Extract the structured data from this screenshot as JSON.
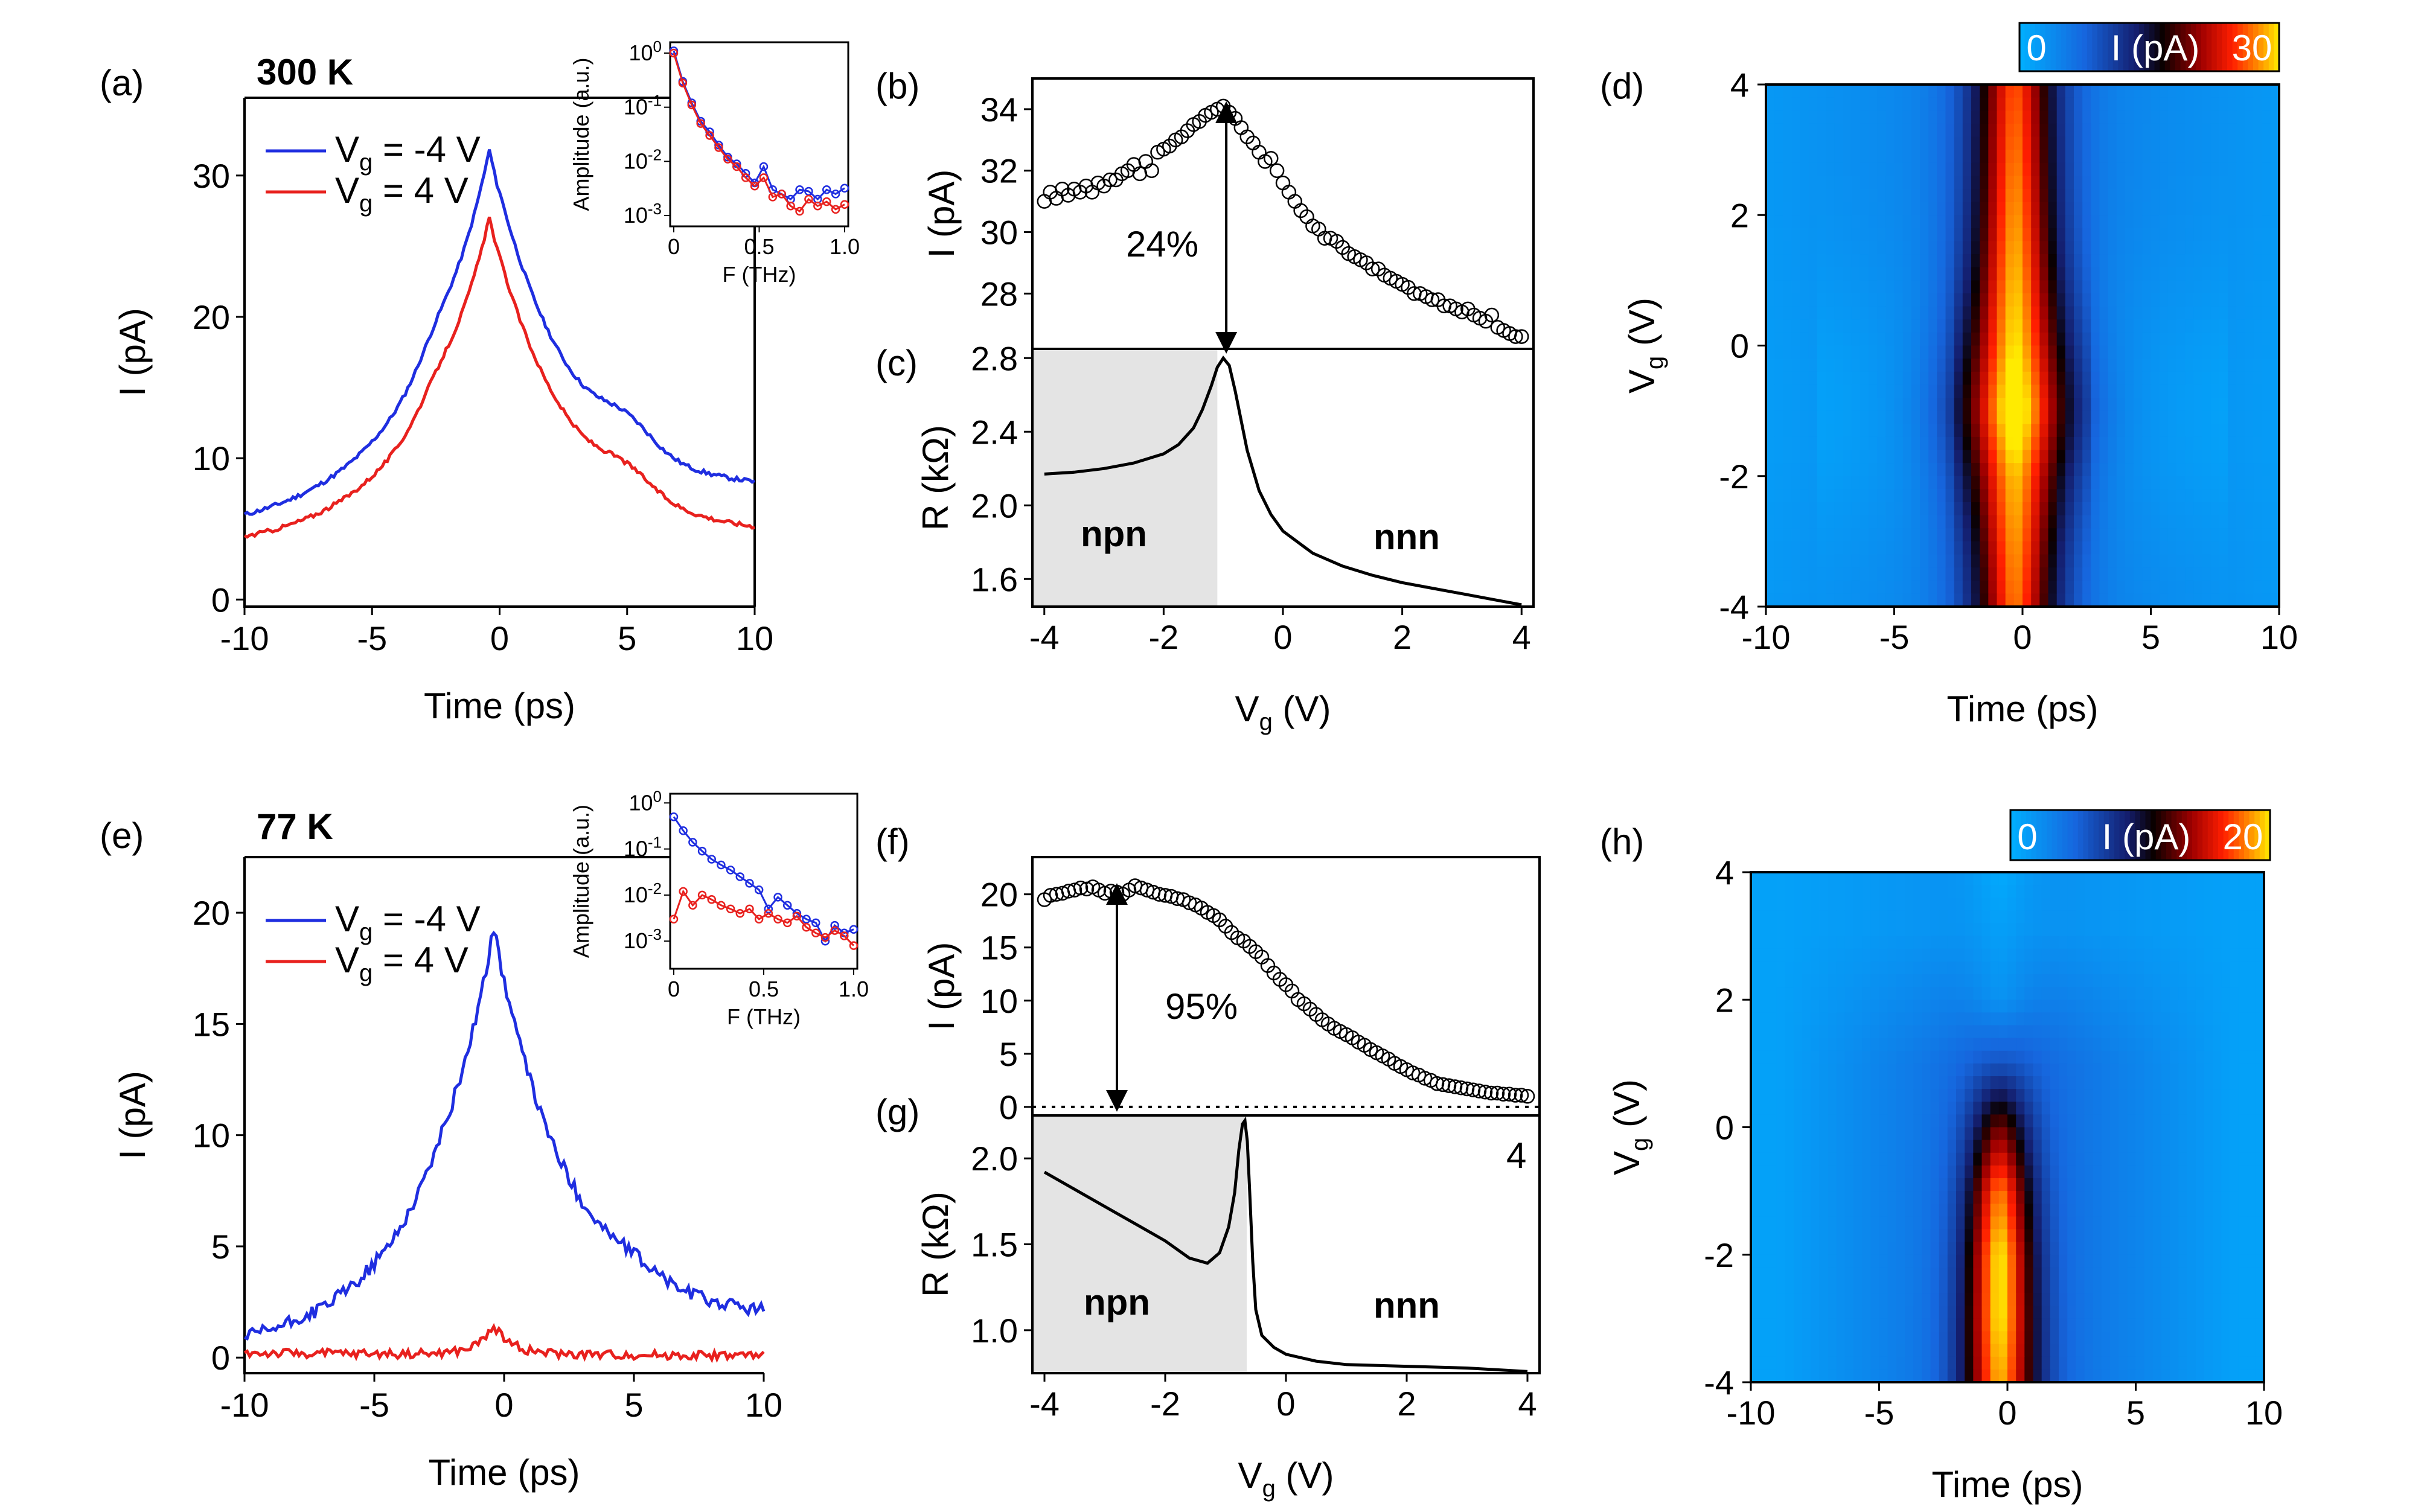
{
  "figure": {
    "panel_labels": [
      "(a)",
      "(b)",
      "(c)",
      "(d)",
      "(e)",
      "(f)",
      "(g)",
      "(h)"
    ],
    "temp_labels": [
      "300 K",
      "77 K"
    ],
    "region_labels": [
      "npn",
      "nnn"
    ],
    "percent_labels": [
      "24%",
      "95%"
    ],
    "g_corner": "4"
  },
  "chart_data": [
    {
      "id": "a",
      "type": "line",
      "title": "300 K",
      "xlabel": "Time (ps)",
      "ylabel": "I (pA)",
      "xlim": [
        -10,
        10
      ],
      "ylim": [
        -0.5,
        35.5
      ],
      "xticks": [
        -10,
        -5,
        0,
        5,
        10
      ],
      "yticks": [
        0,
        10,
        20,
        30
      ],
      "legend": "top-left",
      "series": [
        {
          "name": "Vg = -4 V",
          "color": "#1f2ee0",
          "peak": 31.8,
          "base": 4.9,
          "tail": 7.3,
          "wl": 3.0,
          "wr": 3.3,
          "hump": 1.6,
          "noise": 0.15
        },
        {
          "name": "Vg = 4 V",
          "color": "#e8211e",
          "peak": 27.0,
          "base": 3.5,
          "tail": 4.3,
          "wl": 3.0,
          "wr": 3.2,
          "hump": 1.3,
          "noise": 0.15
        }
      ],
      "inset": {
        "xlabel": "F (THz)",
        "ylabel": "Amplitude (a.u.)",
        "xlim": [
          0,
          1
        ],
        "ylim_log": [
          -3.2,
          0.2
        ],
        "xticks": [
          "0",
          "0.5",
          "1.0"
        ],
        "yticks": [
          "10^0",
          "10^-1",
          "10^-2",
          "10^-3"
        ],
        "series": [
          {
            "name": "Vg = -4 V",
            "color": "#1f2ee0",
            "values": [
              1.1,
              0.3,
              0.12,
              0.055,
              0.035,
              0.02,
              0.012,
              0.009,
              0.006,
              0.004,
              0.008,
              0.003,
              0.0025,
              0.002,
              0.003,
              0.0028,
              0.002,
              0.003,
              0.0025,
              0.0032
            ]
          },
          {
            "name": "Vg = 4 V",
            "color": "#e8211e",
            "values": [
              1.0,
              0.28,
              0.11,
              0.05,
              0.03,
              0.018,
              0.011,
              0.008,
              0.005,
              0.0035,
              0.005,
              0.0022,
              0.0025,
              0.0015,
              0.0012,
              0.002,
              0.0015,
              0.0018,
              0.0013,
              0.0016
            ]
          }
        ]
      }
    },
    {
      "id": "b",
      "type": "scatter",
      "xlabel": "",
      "ylabel": "I (pA)",
      "xlim": [
        -4.2,
        4.2
      ],
      "ylim": [
        26.2,
        35.0
      ],
      "yticks": [
        28,
        30,
        32,
        34
      ],
      "x": [
        -4.0,
        -3.9,
        -3.8,
        -3.7,
        -3.6,
        -3.5,
        -3.4,
        -3.3,
        -3.2,
        -3.1,
        -3.0,
        -2.9,
        -2.8,
        -2.7,
        -2.6,
        -2.5,
        -2.4,
        -2.3,
        -2.2,
        -2.1,
        -2.0,
        -1.9,
        -1.8,
        -1.7,
        -1.6,
        -1.5,
        -1.4,
        -1.3,
        -1.2,
        -1.1,
        -1.0,
        -0.9,
        -0.8,
        -0.7,
        -0.6,
        -0.5,
        -0.4,
        -0.3,
        -0.2,
        -0.1,
        0.0,
        0.1,
        0.2,
        0.3,
        0.4,
        0.5,
        0.6,
        0.7,
        0.8,
        0.9,
        1.0,
        1.1,
        1.2,
        1.3,
        1.4,
        1.5,
        1.6,
        1.7,
        1.8,
        1.9,
        2.0,
        2.1,
        2.2,
        2.3,
        2.4,
        2.5,
        2.6,
        2.7,
        2.8,
        2.9,
        3.0,
        3.1,
        3.2,
        3.3,
        3.4,
        3.5,
        3.6,
        3.7,
        3.8,
        3.9,
        4.0
      ],
      "y": [
        31.0,
        31.3,
        31.1,
        31.4,
        31.2,
        31.4,
        31.3,
        31.5,
        31.3,
        31.6,
        31.5,
        31.7,
        31.7,
        31.9,
        32.0,
        32.2,
        31.9,
        32.3,
        32.0,
        32.6,
        32.7,
        32.8,
        33.0,
        33.1,
        33.3,
        33.5,
        33.6,
        33.8,
        33.9,
        34.0,
        34.1,
        33.9,
        33.7,
        33.4,
        33.1,
        32.9,
        32.6,
        32.3,
        32.4,
        32.0,
        31.6,
        31.3,
        31.0,
        30.7,
        30.5,
        30.2,
        30.1,
        29.8,
        29.8,
        29.7,
        29.5,
        29.3,
        29.2,
        29.1,
        29.0,
        28.8,
        28.8,
        28.6,
        28.5,
        28.4,
        28.3,
        28.2,
        28.0,
        28.0,
        27.9,
        27.8,
        27.8,
        27.6,
        27.6,
        27.5,
        27.4,
        27.5,
        27.3,
        27.2,
        27.1,
        27.3,
        26.9,
        26.8,
        26.7,
        26.6,
        26.6
      ],
      "arrow": {
        "x": -0.95,
        "from": 26.2,
        "to": 34.1
      }
    },
    {
      "id": "c",
      "type": "line",
      "xlabel": "Vg (V)",
      "ylabel": "R (kΩ)",
      "xlim": [
        -4.2,
        4.2
      ],
      "ylim": [
        1.45,
        2.85
      ],
      "xticks": [
        -4,
        -2,
        0,
        2,
        4
      ],
      "yticks": [
        1.6,
        2.0,
        2.4,
        2.8
      ],
      "shade_to": -1.1,
      "x": [
        -4.0,
        -3.5,
        -3.0,
        -2.5,
        -2.0,
        -1.75,
        -1.5,
        -1.35,
        -1.2,
        -1.1,
        -1.0,
        -0.9,
        -0.8,
        -0.6,
        -0.4,
        -0.2,
        0.0,
        0.5,
        1.0,
        1.5,
        2.0,
        2.5,
        3.0,
        3.5,
        4.0
      ],
      "y": [
        2.17,
        2.18,
        2.2,
        2.23,
        2.28,
        2.33,
        2.42,
        2.52,
        2.65,
        2.75,
        2.8,
        2.76,
        2.62,
        2.3,
        2.08,
        1.95,
        1.86,
        1.74,
        1.67,
        1.62,
        1.58,
        1.55,
        1.52,
        1.49,
        1.46
      ]
    },
    {
      "id": "d",
      "type": "heatmap",
      "xlabel": "Time (ps)",
      "ylabel": "Vg (V)",
      "xlim": [
        -10,
        10
      ],
      "ylim": [
        -4,
        4
      ],
      "xticks": [
        -10,
        -5,
        0,
        5,
        10
      ],
      "yticks": [
        4,
        2,
        0,
        -2,
        -4
      ],
      "colorbar": {
        "min": "0",
        "label": "I (pA)",
        "max": "30",
        "min_value": 0,
        "max_value": 30
      },
      "peak_at_vg": [
        -4,
        -2,
        -1,
        0,
        1,
        2,
        4
      ],
      "peak_values": [
        27,
        29,
        32,
        30,
        29,
        28,
        26
      ]
    },
    {
      "id": "e",
      "type": "line",
      "title": "77 K",
      "xlabel": "Time (ps)",
      "ylabel": "I (pA)",
      "xlim": [
        -10,
        10
      ],
      "ylim": [
        -0.7,
        22.5
      ],
      "xticks": [
        -10,
        -5,
        0,
        5,
        10
      ],
      "yticks": [
        0,
        5,
        10,
        15,
        20
      ],
      "legend": "top-left",
      "series": [
        {
          "name": "Vg = -4 V",
          "color": "#1f2ee0",
          "peak": 19.3,
          "base": 0.3,
          "tail": 1.6,
          "wl": 2.8,
          "wr": 3.0,
          "hump": 0.4,
          "noise": 0.3
        },
        {
          "name": "Vg = 4 V",
          "color": "#e8211e",
          "peak": 1.5,
          "base": 0.2,
          "tail": 0.1,
          "wl": 0.6,
          "wr": 0.7,
          "hump": 0.0,
          "noise": 0.2
        }
      ],
      "inset": {
        "xlabel": "F (THz)",
        "ylabel": "Amplitude (a.u.)",
        "xlim": [
          0,
          1
        ],
        "ylim_log": [
          -3.6,
          0.2
        ],
        "xticks": [
          "0",
          "0.5",
          "1.0"
        ],
        "yticks": [
          "10^0",
          "10^-1",
          "10^-2",
          "10^-3"
        ],
        "series": [
          {
            "name": "Vg = -4 V",
            "color": "#1f2ee0",
            "values": [
              0.5,
              0.25,
              0.14,
              0.09,
              0.06,
              0.045,
              0.035,
              0.025,
              0.018,
              0.013,
              0.005,
              0.009,
              0.006,
              0.004,
              0.003,
              0.0025,
              0.001,
              0.0022,
              0.0015,
              0.0018
            ]
          },
          {
            "name": "Vg = 4 V",
            "color": "#e8211e",
            "values": [
              0.003,
              0.012,
              0.006,
              0.01,
              0.008,
              0.006,
              0.005,
              0.004,
              0.005,
              0.003,
              0.004,
              0.003,
              0.0025,
              0.0035,
              0.002,
              0.0015,
              0.0012,
              0.0017,
              0.0013,
              0.0008
            ]
          }
        ]
      }
    },
    {
      "id": "f",
      "type": "scatter",
      "xlabel": "",
      "ylabel": "I (pA)",
      "xlim": [
        -4.2,
        4.2
      ],
      "ylim": [
        -0.8,
        23.5
      ],
      "yticks": [
        0,
        5,
        10,
        15,
        20
      ],
      "x": [
        -4.0,
        -3.9,
        -3.8,
        -3.7,
        -3.6,
        -3.5,
        -3.4,
        -3.3,
        -3.2,
        -3.1,
        -3.0,
        -2.9,
        -2.8,
        -2.7,
        -2.6,
        -2.5,
        -2.4,
        -2.3,
        -2.2,
        -2.1,
        -2.0,
        -1.9,
        -1.8,
        -1.7,
        -1.6,
        -1.5,
        -1.4,
        -1.3,
        -1.2,
        -1.1,
        -1.0,
        -0.9,
        -0.8,
        -0.7,
        -0.6,
        -0.5,
        -0.4,
        -0.3,
        -0.2,
        -0.1,
        0.0,
        0.1,
        0.2,
        0.3,
        0.4,
        0.5,
        0.6,
        0.7,
        0.8,
        0.9,
        1.0,
        1.1,
        1.2,
        1.3,
        1.4,
        1.5,
        1.6,
        1.7,
        1.8,
        1.9,
        2.0,
        2.1,
        2.2,
        2.3,
        2.4,
        2.5,
        2.6,
        2.7,
        2.8,
        2.9,
        3.0,
        3.1,
        3.2,
        3.3,
        3.4,
        3.5,
        3.6,
        3.7,
        3.8,
        3.9,
        4.0
      ],
      "y": [
        19.5,
        19.9,
        20.0,
        20.1,
        20.3,
        20.4,
        20.6,
        20.5,
        20.7,
        20.4,
        20.1,
        20.3,
        20.2,
        20.0,
        20.4,
        20.8,
        20.6,
        20.4,
        20.2,
        20.0,
        19.9,
        19.8,
        19.6,
        19.5,
        19.2,
        19.0,
        18.7,
        18.3,
        18.0,
        17.6,
        17.0,
        16.4,
        15.9,
        15.6,
        15.1,
        14.6,
        14.1,
        13.3,
        12.6,
        12.0,
        11.5,
        10.9,
        10.1,
        9.7,
        9.2,
        8.7,
        8.2,
        7.8,
        7.4,
        7.1,
        6.8,
        6.5,
        6.1,
        5.8,
        5.4,
        5.1,
        4.8,
        4.5,
        4.1,
        3.8,
        3.5,
        3.2,
        3.0,
        2.7,
        2.5,
        2.2,
        2.1,
        2.0,
        1.9,
        1.8,
        1.7,
        1.6,
        1.5,
        1.4,
        1.3,
        1.3,
        1.2,
        1.2,
        1.1,
        1.1,
        1.0
      ],
      "arrow": {
        "x": -2.8,
        "from": 0.0,
        "to": 20.6
      }
    },
    {
      "id": "g",
      "type": "line",
      "xlabel": "Vg (V)",
      "ylabel": "R (kΩ)",
      "xlim": [
        -4.2,
        4.2
      ],
      "ylim": [
        0.75,
        2.25
      ],
      "xticks": [
        -4,
        -2,
        0,
        2,
        4
      ],
      "yticks": [
        1.0,
        1.5,
        2.0
      ],
      "shade_to": -0.65,
      "x": [
        -4.0,
        -3.5,
        -3.0,
        -2.5,
        -2.0,
        -1.6,
        -1.3,
        -1.1,
        -0.95,
        -0.85,
        -0.78,
        -0.72,
        -0.68,
        -0.64,
        -0.6,
        -0.55,
        -0.5,
        -0.4,
        -0.2,
        0.0,
        0.5,
        1.0,
        2.0,
        3.0,
        4.0
      ],
      "y": [
        1.92,
        1.82,
        1.72,
        1.62,
        1.52,
        1.42,
        1.39,
        1.45,
        1.6,
        1.8,
        2.05,
        2.2,
        2.22,
        2.1,
        1.8,
        1.4,
        1.12,
        0.97,
        0.9,
        0.86,
        0.82,
        0.8,
        0.79,
        0.78,
        0.76
      ]
    },
    {
      "id": "h",
      "type": "heatmap",
      "xlabel": "Time (ps)",
      "ylabel": "Vg (V)",
      "xlim": [
        -10,
        10
      ],
      "ylim": [
        -4,
        4
      ],
      "xticks": [
        -10,
        -5,
        0,
        5,
        10
      ],
      "yticks": [
        4,
        2,
        0,
        -2,
        -4
      ],
      "colorbar": {
        "min": "0",
        "label": "I (pA)",
        "max": "20",
        "min_value": 0,
        "max_value": 20
      },
      "peak_at_vg": [
        -4,
        -3,
        -2,
        -1,
        0,
        1,
        2,
        4
      ],
      "peak_values": [
        19,
        20,
        20,
        18,
        13,
        6,
        2,
        0.5
      ]
    }
  ]
}
